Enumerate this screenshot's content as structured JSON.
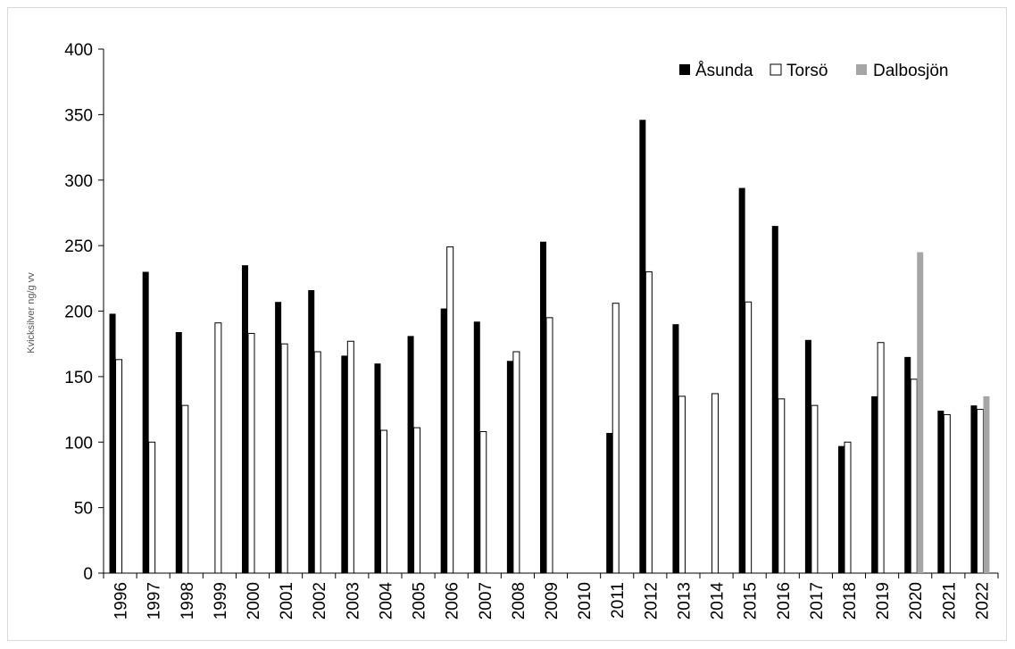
{
  "chart_data": {
    "type": "bar",
    "title": "",
    "xlabel": "",
    "ylabel": "Kvicksilver ng/g vv",
    "ylim": [
      0,
      400
    ],
    "yticks": [
      0,
      50,
      100,
      150,
      200,
      250,
      300,
      350,
      400
    ],
    "grid": false,
    "legend_position": "top-right",
    "categories": [
      "1996",
      "1997",
      "1998",
      "1999",
      "2000",
      "2001",
      "2002",
      "2003",
      "2004",
      "2005",
      "2006",
      "2007",
      "2008",
      "2009",
      "2010",
      "2011",
      "2012",
      "2013",
      "2014",
      "2015",
      "2016",
      "2017",
      "2018",
      "2019",
      "2020",
      "2021",
      "2022"
    ],
    "series": [
      {
        "name": "Åsunda",
        "color": "#000000",
        "values": [
          198,
          230,
          184,
          null,
          235,
          207,
          216,
          166,
          160,
          181,
          202,
          192,
          162,
          253,
          null,
          107,
          346,
          190,
          null,
          294,
          265,
          178,
          97,
          135,
          165,
          124,
          128
        ]
      },
      {
        "name": "Torsö",
        "color": "#ffffff",
        "values": [
          163,
          100,
          128,
          191,
          183,
          175,
          169,
          177,
          109,
          111,
          249,
          108,
          169,
          195,
          null,
          206,
          230,
          135,
          137,
          207,
          133,
          128,
          100,
          176,
          148,
          121,
          125
        ]
      },
      {
        "name": "Dalbosjön",
        "color": "#a6a6a6",
        "values": [
          null,
          null,
          null,
          null,
          null,
          null,
          null,
          null,
          null,
          null,
          null,
          null,
          null,
          null,
          null,
          null,
          null,
          null,
          null,
          null,
          null,
          null,
          null,
          null,
          245,
          null,
          135
        ]
      }
    ]
  }
}
